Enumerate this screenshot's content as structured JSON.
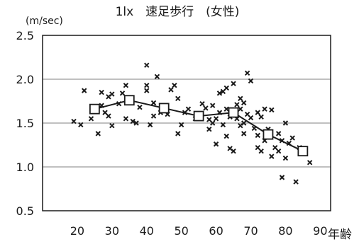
{
  "chart_data": {
    "type": "scatter",
    "title": "1lx　速足歩行　(女性)",
    "ylabel": "(m/sec)",
    "xlabel": "年齢",
    "xlim": [
      10,
      93
    ],
    "ylim": [
      0.5,
      2.5
    ],
    "x_ticks": [
      20,
      30,
      40,
      50,
      60,
      70,
      80,
      90
    ],
    "y_ticks": [
      0.5,
      1.0,
      1.5,
      2.0,
      2.5
    ],
    "x_tick_labels": [
      "20",
      "30",
      "40",
      "50",
      "60",
      "70",
      "80",
      "90"
    ],
    "y_tick_labels": [
      "0.5",
      "1.0",
      "1.5",
      "2.0",
      "2.5"
    ],
    "grid": "horizontal",
    "colors": {
      "marks": "#1a1a1a",
      "grid": "#9a9a9a",
      "frame": "#1a1a1a"
    },
    "series": [
      {
        "marker": "x",
        "points": [
          [
            19,
            1.52
          ],
          [
            21,
            1.48
          ],
          [
            22,
            1.87
          ],
          [
            24,
            1.55
          ],
          [
            25,
            1.64
          ],
          [
            26,
            1.38
          ],
          [
            27,
            1.85
          ],
          [
            27,
            1.7
          ],
          [
            28,
            1.62
          ],
          [
            29,
            1.8
          ],
          [
            29,
            1.58
          ],
          [
            30,
            1.47
          ],
          [
            30,
            1.83
          ],
          [
            32,
            1.72
          ],
          [
            33,
            1.84
          ],
          [
            34,
            1.93
          ],
          [
            34,
            1.55
          ],
          [
            35,
            1.78
          ],
          [
            36,
            1.52
          ],
          [
            37,
            1.5
          ],
          [
            38,
            1.68
          ],
          [
            40,
            2.16
          ],
          [
            40,
            1.93
          ],
          [
            40,
            1.87
          ],
          [
            41,
            1.48
          ],
          [
            42,
            1.58
          ],
          [
            42,
            1.73
          ],
          [
            43,
            2.03
          ],
          [
            44,
            1.62
          ],
          [
            46,
            1.6
          ],
          [
            47,
            1.88
          ],
          [
            48,
            1.93
          ],
          [
            49,
            1.38
          ],
          [
            49,
            1.78
          ],
          [
            50,
            1.48
          ],
          [
            51,
            1.62
          ],
          [
            52,
            1.66
          ],
          [
            54,
            1.55
          ],
          [
            55,
            1.56
          ],
          [
            56,
            1.72
          ],
          [
            57,
            1.67
          ],
          [
            58,
            1.54
          ],
          [
            58,
            1.43
          ],
          [
            59,
            1.7
          ],
          [
            59,
            1.5
          ],
          [
            60,
            1.26
          ],
          [
            60,
            1.55
          ],
          [
            61,
            1.62
          ],
          [
            61,
            1.84
          ],
          [
            62,
            1.86
          ],
          [
            62,
            1.48
          ],
          [
            63,
            1.9
          ],
          [
            63,
            1.66
          ],
          [
            63,
            1.35
          ],
          [
            64,
            1.57
          ],
          [
            64,
            1.21
          ],
          [
            65,
            1.18
          ],
          [
            65,
            1.6
          ],
          [
            65,
            1.95
          ],
          [
            66,
            1.71
          ],
          [
            66,
            1.55
          ],
          [
            67,
            1.66
          ],
          [
            67,
            1.47
          ],
          [
            67,
            1.78
          ],
          [
            68,
            1.73
          ],
          [
            68,
            1.5
          ],
          [
            68,
            1.38
          ],
          [
            69,
            2.07
          ],
          [
            69,
            1.6
          ],
          [
            70,
            1.56
          ],
          [
            70,
            1.98
          ],
          [
            71,
            1.44
          ],
          [
            72,
            1.36
          ],
          [
            72,
            1.62
          ],
          [
            72,
            1.22
          ],
          [
            73,
            1.57
          ],
          [
            73,
            1.18
          ],
          [
            74,
            1.66
          ],
          [
            74,
            1.3
          ],
          [
            75,
            1.43
          ],
          [
            76,
            1.65
          ],
          [
            76,
            1.12
          ],
          [
            77,
            1.22
          ],
          [
            78,
            1.18
          ],
          [
            78,
            1.38
          ],
          [
            79,
            1.3
          ],
          [
            79,
            0.88
          ],
          [
            80,
            1.1
          ],
          [
            80,
            1.5
          ],
          [
            81,
            1.27
          ],
          [
            82,
            1.33
          ],
          [
            83,
            0.83
          ],
          [
            84,
            1.22
          ],
          [
            87,
            1.05
          ]
        ]
      },
      {
        "marker": "square-line",
        "points": [
          [
            25,
            1.66
          ],
          [
            35,
            1.76
          ],
          [
            45,
            1.67
          ],
          [
            55,
            1.58
          ],
          [
            65,
            1.62
          ],
          [
            75,
            1.37
          ],
          [
            85,
            1.18
          ]
        ]
      }
    ]
  }
}
